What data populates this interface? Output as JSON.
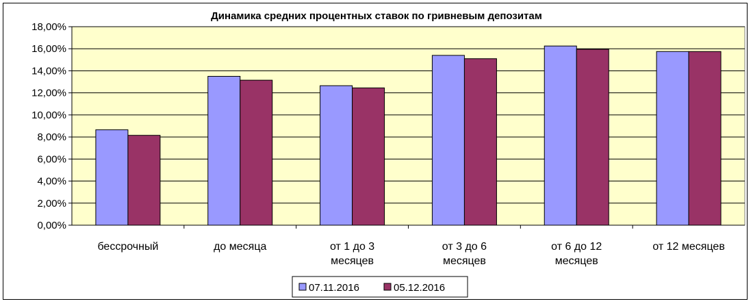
{
  "chart_data": {
    "type": "bar",
    "title": "Динамика средних процентных ставок по гривневым депозитам",
    "categories": [
      [
        "бессрочный"
      ],
      [
        "до месяца"
      ],
      [
        "от 1 до 3",
        "месяцев"
      ],
      [
        "от 3 до 6",
        "месяцев"
      ],
      [
        "от 6 до 12",
        "месяцев"
      ],
      [
        "от 12 месяцев"
      ]
    ],
    "series": [
      {
        "name": "07.11.2016",
        "color": "#9999ff",
        "values": [
          8.65,
          13.5,
          12.65,
          15.4,
          16.25,
          15.75
        ]
      },
      {
        "name": "05.12.2016",
        "color": "#993366",
        "values": [
          8.15,
          13.15,
          12.45,
          15.1,
          15.95,
          15.75
        ]
      }
    ],
    "ylim": [
      0,
      18
    ],
    "ytick_step": 2,
    "ytick_format": "0,00%",
    "ytick_labels": [
      "0,00%",
      "2,00%",
      "4,00%",
      "6,00%",
      "8,00%",
      "10,00%",
      "12,00%",
      "14,00%",
      "16,00%",
      "18,00%"
    ],
    "plot_background": "#ffffcc",
    "grid": true,
    "legend_position": "bottom"
  }
}
